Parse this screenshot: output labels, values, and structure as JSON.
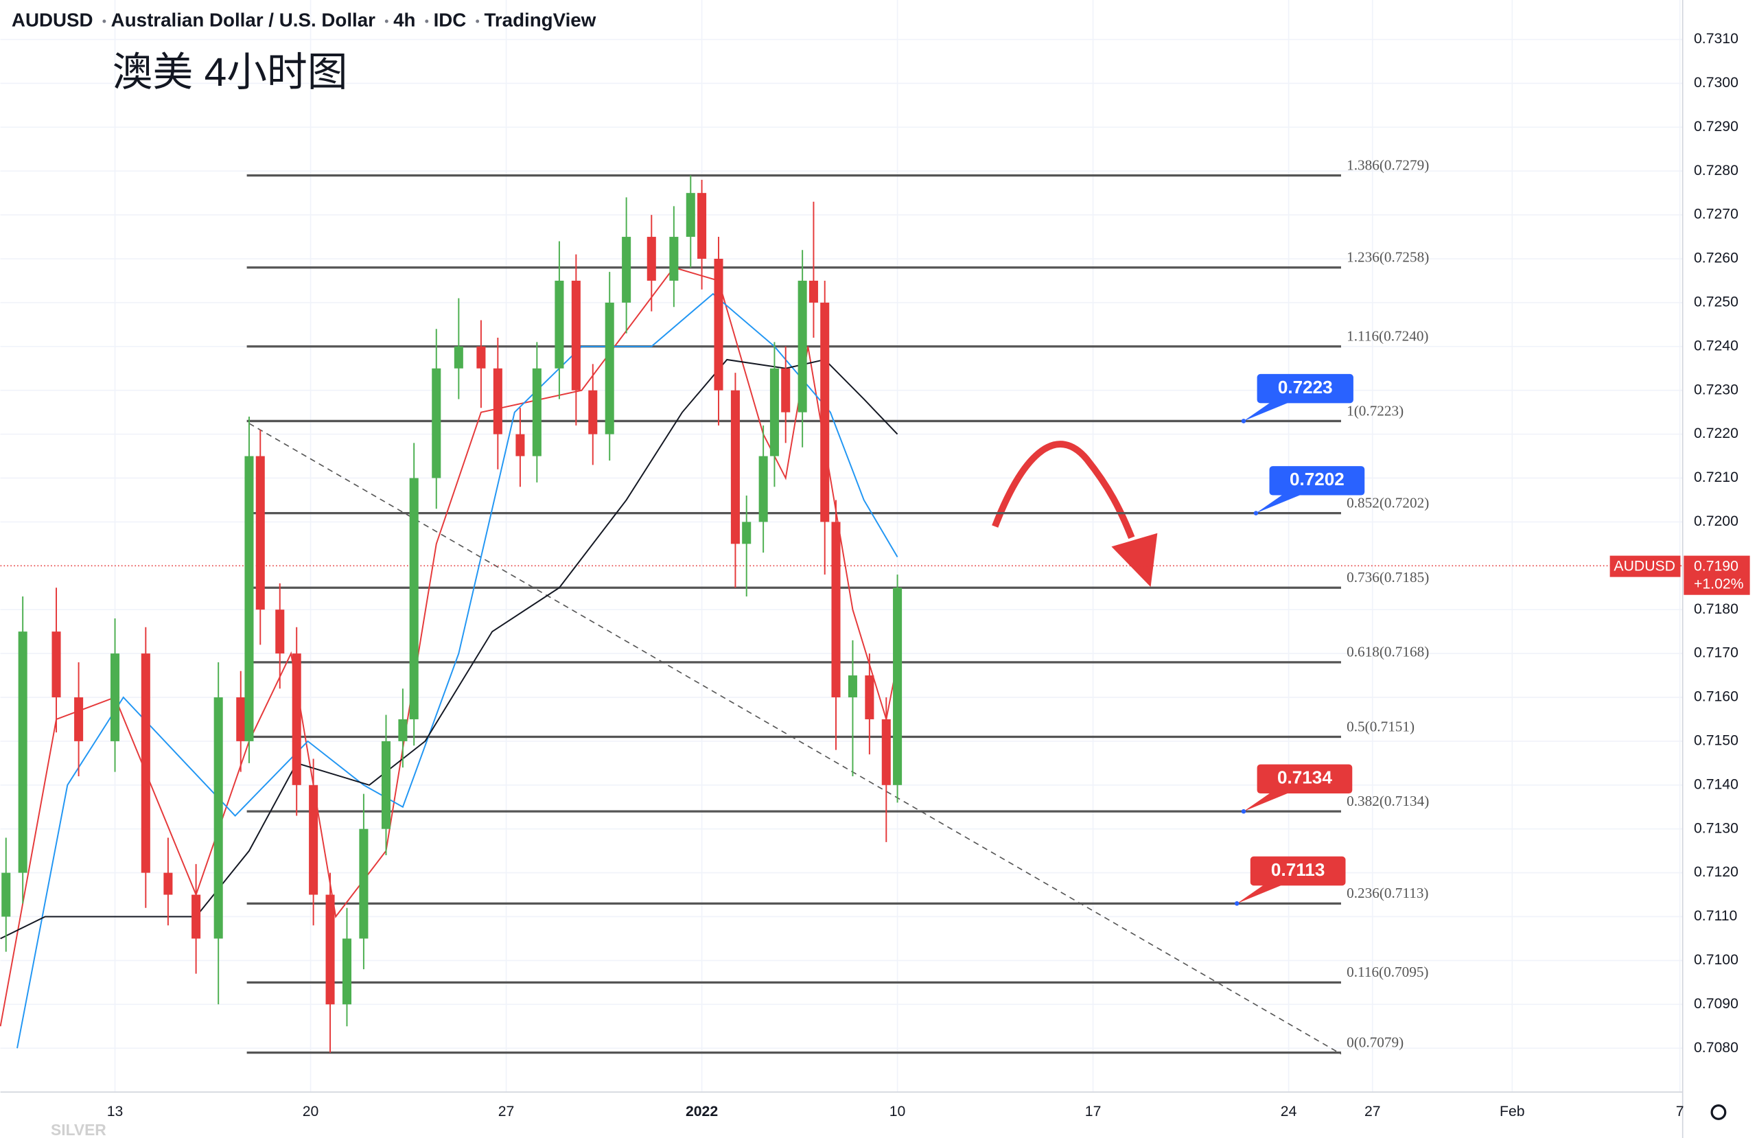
{
  "chart_data": {
    "type": "candlestick",
    "header": [
      "AUDUSD",
      "Australian Dollar / U.S. Dollar",
      "4h",
      "IDC",
      "TradingView"
    ],
    "title": "澳美 4小时图",
    "watermark": "SILVER",
    "up_color": "#4caf50",
    "down_color": "#e5393a",
    "grid": true,
    "xlim": [
      8.9,
      69.1
    ],
    "ylim": [
      0.707,
      0.7319
    ],
    "xticks": [
      {
        "value": 13,
        "label": "13"
      },
      {
        "value": 20,
        "label": "20"
      },
      {
        "value": 27,
        "label": "27"
      },
      {
        "value": 34,
        "label": "2022"
      },
      {
        "value": 41,
        "label": "10"
      },
      {
        "value": 48,
        "label": "17"
      },
      {
        "value": 55,
        "label": "24"
      },
      {
        "value": 58,
        "label": "27"
      },
      {
        "value": 63,
        "label": "Feb"
      },
      {
        "value": 69,
        "label": "7"
      }
    ],
    "yticks": [
      {
        "value": 0.731,
        "label": "0.7310"
      },
      {
        "value": 0.73,
        "label": "0.7300"
      },
      {
        "value": 0.729,
        "label": "0.7290"
      },
      {
        "value": 0.728,
        "label": "0.7280"
      },
      {
        "value": 0.727,
        "label": "0.7270"
      },
      {
        "value": 0.726,
        "label": "0.7260"
      },
      {
        "value": 0.725,
        "label": "0.7250"
      },
      {
        "value": 0.724,
        "label": "0.7240"
      },
      {
        "value": 0.723,
        "label": "0.7230"
      },
      {
        "value": 0.722,
        "label": "0.7220"
      },
      {
        "value": 0.721,
        "label": "0.7210"
      },
      {
        "value": 0.72,
        "label": "0.7200"
      },
      {
        "value": 0.718,
        "label": "0.7180"
      },
      {
        "value": 0.717,
        "label": "0.7170"
      },
      {
        "value": 0.716,
        "label": "0.7160"
      },
      {
        "value": 0.715,
        "label": "0.7150"
      },
      {
        "value": 0.714,
        "label": "0.7140"
      },
      {
        "value": 0.713,
        "label": "0.7130"
      },
      {
        "value": 0.712,
        "label": "0.7120"
      },
      {
        "value": 0.711,
        "label": "0.7110"
      },
      {
        "value": 0.71,
        "label": "0.7100"
      },
      {
        "value": 0.709,
        "label": "0.7090"
      },
      {
        "value": 0.708,
        "label": "0.7080"
      }
    ],
    "x": [
      9.1,
      9.7,
      10.9,
      11.7,
      13.0,
      14.1,
      14.9,
      15.9,
      16.7,
      17.5,
      17.8,
      18.2,
      18.9,
      19.5,
      20.1,
      20.7,
      21.3,
      21.9,
      22.7,
      23.3,
      23.7,
      24.5,
      25.3,
      26.1,
      26.7,
      27.5,
      28.1,
      28.9,
      29.5,
      30.1,
      30.7,
      31.3,
      32.2,
      33.0,
      33.6,
      34.0,
      34.6,
      35.2,
      35.6,
      36.2,
      36.6,
      37.0,
      37.6,
      38.0,
      38.4,
      38.8,
      39.4,
      40.0,
      40.6,
      41.0
    ],
    "open": [
      0.711,
      0.712,
      0.7175,
      0.716,
      0.715,
      0.717,
      0.712,
      0.7115,
      0.7105,
      0.716,
      0.715,
      0.7215,
      0.718,
      0.717,
      0.714,
      0.7115,
      0.709,
      0.7105,
      0.713,
      0.715,
      0.7155,
      0.721,
      0.7235,
      0.724,
      0.7235,
      0.722,
      0.7215,
      0.7235,
      0.7255,
      0.723,
      0.722,
      0.725,
      0.7265,
      0.7255,
      0.7265,
      0.7275,
      0.726,
      0.723,
      0.7195,
      0.72,
      0.7215,
      0.7235,
      0.7225,
      0.7255,
      0.725,
      0.72,
      0.716,
      0.7165,
      0.7155,
      0.714
    ],
    "high": [
      0.7128,
      0.7183,
      0.7185,
      0.7168,
      0.7178,
      0.7176,
      0.7128,
      0.7122,
      0.7168,
      0.7166,
      0.7224,
      0.7221,
      0.7186,
      0.7176,
      0.7146,
      0.712,
      0.7112,
      0.7138,
      0.7156,
      0.7162,
      0.7218,
      0.7244,
      0.7251,
      0.7246,
      0.7242,
      0.7226,
      0.7241,
      0.7264,
      0.7261,
      0.7236,
      0.7257,
      0.7274,
      0.727,
      0.7272,
      0.7279,
      0.7278,
      0.7265,
      0.7234,
      0.7206,
      0.7222,
      0.7241,
      0.724,
      0.7262,
      0.7273,
      0.7255,
      0.7205,
      0.7173,
      0.717,
      0.716,
      0.7188
    ],
    "low": [
      0.7102,
      0.7113,
      0.7152,
      0.7142,
      0.7143,
      0.7112,
      0.7108,
      0.7097,
      0.709,
      0.7143,
      0.7145,
      0.7172,
      0.7162,
      0.7133,
      0.7108,
      0.7079,
      0.7085,
      0.7098,
      0.7124,
      0.7144,
      0.7149,
      0.7203,
      0.7228,
      0.7226,
      0.7212,
      0.7208,
      0.7209,
      0.7228,
      0.7222,
      0.7213,
      0.7214,
      0.7243,
      0.7248,
      0.7249,
      0.7258,
      0.7253,
      0.7222,
      0.7185,
      0.7183,
      0.7193,
      0.7208,
      0.7218,
      0.7217,
      0.7242,
      0.7188,
      0.7148,
      0.7142,
      0.7147,
      0.7127,
      0.7136
    ],
    "close": [
      0.712,
      0.7175,
      0.716,
      0.715,
      0.717,
      0.712,
      0.7115,
      0.7105,
      0.716,
      0.715,
      0.7215,
      0.718,
      0.717,
      0.714,
      0.7115,
      0.709,
      0.7105,
      0.713,
      0.715,
      0.7155,
      0.721,
      0.7235,
      0.724,
      0.7235,
      0.722,
      0.7215,
      0.7235,
      0.7255,
      0.723,
      0.722,
      0.725,
      0.7265,
      0.7255,
      0.7265,
      0.7275,
      0.726,
      0.723,
      0.7195,
      0.72,
      0.7215,
      0.7235,
      0.7225,
      0.7255,
      0.725,
      0.72,
      0.716,
      0.7165,
      0.7155,
      0.714,
      0.7185
    ],
    "series": [
      {
        "color": "#e5393a",
        "x": [
          8.9,
          10.9,
          13.0,
          15.9,
          17.8,
          19.3,
          20.9,
          22.7,
          24.5,
          26.1,
          29.7,
          33.0,
          34.6,
          36.2,
          37.0,
          37.8,
          39.4,
          40.6,
          41.0
        ],
        "values": [
          0.7085,
          0.7155,
          0.716,
          0.7115,
          0.715,
          0.717,
          0.711,
          0.7125,
          0.7195,
          0.7225,
          0.723,
          0.7258,
          0.7255,
          0.722,
          0.721,
          0.724,
          0.718,
          0.7155,
          0.7168
        ]
      },
      {
        "color": "#2196f3",
        "x": [
          9.5,
          11.3,
          13.3,
          17.3,
          19.9,
          21.9,
          23.3,
          25.3,
          27.3,
          29.7,
          32.2,
          34.4,
          36.6,
          38.6,
          39.8,
          41.0
        ],
        "values": [
          0.708,
          0.714,
          0.716,
          0.7133,
          0.715,
          0.714,
          0.7135,
          0.717,
          0.7225,
          0.724,
          0.724,
          0.7252,
          0.724,
          0.7225,
          0.7205,
          0.7192
        ]
      },
      {
        "color": "#131722",
        "x": [
          8.9,
          10.5,
          12.9,
          15.9,
          17.8,
          19.5,
          22.1,
          24.1,
          26.5,
          28.9,
          31.3,
          33.3,
          34.9,
          37.0,
          38.4,
          39.8,
          41.0
        ],
        "values": [
          0.7105,
          0.711,
          0.711,
          0.711,
          0.7125,
          0.7145,
          0.714,
          0.715,
          0.7175,
          0.7185,
          0.7205,
          0.7225,
          0.7237,
          0.7235,
          0.7237,
          0.7228,
          0.722
        ]
      }
    ],
    "fib_levels": [
      {
        "value": 0.7279,
        "label": "1.386(0.7279)"
      },
      {
        "value": 0.7258,
        "label": "1.236(0.7258)"
      },
      {
        "value": 0.724,
        "label": "1.116(0.7240)"
      },
      {
        "value": 0.7223,
        "label": "1(0.7223)"
      },
      {
        "value": 0.7202,
        "label": "0.852(0.7202)"
      },
      {
        "value": 0.7185,
        "label": "0.736(0.7185)"
      },
      {
        "value": 0.7168,
        "label": "0.618(0.7168)"
      },
      {
        "value": 0.7151,
        "label": "0.5(0.7151)"
      },
      {
        "value": 0.7134,
        "label": "0.382(0.7134)"
      },
      {
        "value": 0.7113,
        "label": "0.236(0.7113)"
      },
      {
        "value": 0.7095,
        "label": "0.116(0.7095)"
      },
      {
        "value": 0.7079,
        "label": "0(0.7079)"
      }
    ],
    "callouts": [
      {
        "value": 0.7223,
        "color": "#2962ff"
      },
      {
        "value": 0.7202,
        "color": "#2962ff"
      },
      {
        "value": 0.7134,
        "color": "#e5393a"
      },
      {
        "value": 0.7113,
        "color": "#e5393a"
      }
    ],
    "last_price": {
      "symbol": "AUDUSD",
      "price": {
        "value": 0.719,
        "label": "0.7190"
      },
      "change": {
        "value": 1.02,
        "label": "+1.02%"
      },
      "color": "#e5393a"
    }
  }
}
